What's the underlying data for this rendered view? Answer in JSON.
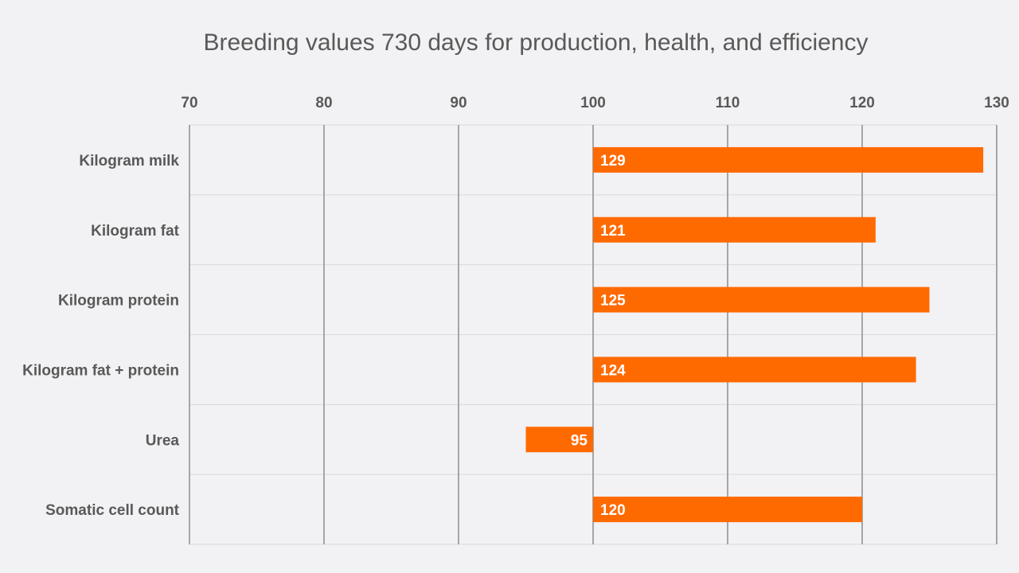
{
  "chart_data": {
    "type": "bar",
    "orientation": "horizontal",
    "title": "Breeding values 730 days for production, health, and efficiency",
    "categories": [
      "Kilogram milk",
      "Kilogram fat",
      "Kilogram protein",
      "Kilogram fat + protein",
      "Urea",
      "Somatic cell count"
    ],
    "values": [
      129,
      121,
      125,
      124,
      95,
      120
    ],
    "baseline": 100,
    "xlim": [
      70,
      130
    ],
    "xticks": [
      "70",
      "80",
      "90",
      "100",
      "110",
      "120",
      "130"
    ],
    "axis_position": "top",
    "grid": true,
    "bar_color": "#ff6a00",
    "gridline_color": "#a6a6a6",
    "row_separator_color": "#d9d9d9",
    "text_color": "#595959",
    "background": "#f2f1f3"
  }
}
